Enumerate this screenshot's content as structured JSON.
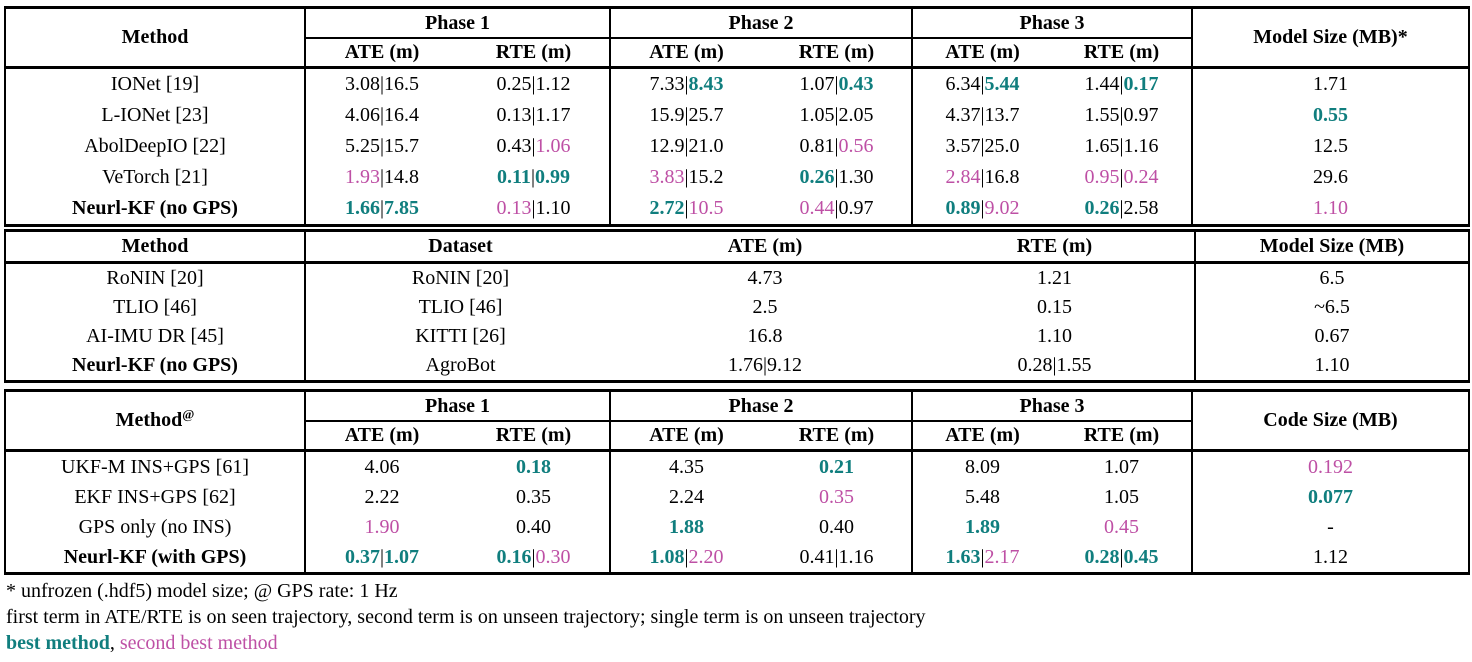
{
  "colors": {
    "best": "#107e7e",
    "second": "#be50a5",
    "text": "#000000",
    "background": "#ffffff"
  },
  "style_legend": {
    "b": "best method (bold teal)",
    "s": "second best method (magenta)",
    "k": "normal black"
  },
  "tables": [
    {
      "id": "imu-methods-phases",
      "kind": "phase",
      "method_header": "Method",
      "method_sup": "",
      "groups": [
        {
          "label": "Phase 1"
        },
        {
          "label": "Phase 2"
        },
        {
          "label": "Phase 3"
        }
      ],
      "sub_headers": [
        "ATE (m)",
        "RTE (m)"
      ],
      "last_header": "Model Size (MB)*",
      "rows": [
        {
          "method": "IONet [19]",
          "bold": false,
          "cells": [
            [
              [
                "3.08",
                "k"
              ],
              [
                "16.5",
                "k"
              ]
            ],
            [
              [
                "0.25",
                "k"
              ],
              [
                "1.12",
                "k"
              ]
            ],
            [
              [
                "7.33",
                "k"
              ],
              [
                "8.43",
                "b"
              ]
            ],
            [
              [
                "1.07",
                "k"
              ],
              [
                "0.43",
                "b"
              ]
            ],
            [
              [
                "6.34",
                "k"
              ],
              [
                "5.44",
                "b"
              ]
            ],
            [
              [
                "1.44",
                "k"
              ],
              [
                "0.17",
                "b"
              ]
            ],
            [
              [
                "1.71",
                "k"
              ]
            ]
          ]
        },
        {
          "method": "L-IONet [23]",
          "bold": false,
          "cells": [
            [
              [
                "4.06",
                "k"
              ],
              [
                "16.4",
                "k"
              ]
            ],
            [
              [
                "0.13",
                "k"
              ],
              [
                "1.17",
                "k"
              ]
            ],
            [
              [
                "15.9",
                "k"
              ],
              [
                "25.7",
                "k"
              ]
            ],
            [
              [
                "1.05",
                "k"
              ],
              [
                "2.05",
                "k"
              ]
            ],
            [
              [
                "4.37",
                "k"
              ],
              [
                "13.7",
                "k"
              ]
            ],
            [
              [
                "1.55",
                "k"
              ],
              [
                "0.97",
                "k"
              ]
            ],
            [
              [
                "0.55",
                "b"
              ]
            ]
          ]
        },
        {
          "method": "AbolDeepIO [22]",
          "bold": false,
          "cells": [
            [
              [
                "5.25",
                "k"
              ],
              [
                "15.7",
                "k"
              ]
            ],
            [
              [
                "0.43",
                "k"
              ],
              [
                "1.06",
                "s"
              ]
            ],
            [
              [
                "12.9",
                "k"
              ],
              [
                "21.0",
                "k"
              ]
            ],
            [
              [
                "0.81",
                "k"
              ],
              [
                "0.56",
                "s"
              ]
            ],
            [
              [
                "3.57",
                "k"
              ],
              [
                "25.0",
                "k"
              ]
            ],
            [
              [
                "1.65",
                "k"
              ],
              [
                "1.16",
                "k"
              ]
            ],
            [
              [
                "12.5",
                "k"
              ]
            ]
          ]
        },
        {
          "method": "VeTorch [21]",
          "bold": false,
          "cells": [
            [
              [
                "1.93",
                "s"
              ],
              [
                "14.8",
                "k"
              ]
            ],
            [
              [
                "0.11",
                "b"
              ],
              [
                "0.99",
                "b"
              ]
            ],
            [
              [
                "3.83",
                "s"
              ],
              [
                "15.2",
                "k"
              ]
            ],
            [
              [
                "0.26",
                "b"
              ],
              [
                "1.30",
                "k"
              ]
            ],
            [
              [
                "2.84",
                "s"
              ],
              [
                "16.8",
                "k"
              ]
            ],
            [
              [
                "0.95",
                "s"
              ],
              [
                "0.24",
                "s"
              ]
            ],
            [
              [
                "29.6",
                "k"
              ]
            ]
          ]
        },
        {
          "method": "Neurl-KF (no GPS)",
          "bold": true,
          "cells": [
            [
              [
                "1.66",
                "b"
              ],
              [
                "7.85",
                "b"
              ]
            ],
            [
              [
                "0.13",
                "s"
              ],
              [
                "1.10",
                "k"
              ]
            ],
            [
              [
                "2.72",
                "b"
              ],
              [
                "10.5",
                "s"
              ]
            ],
            [
              [
                "0.44",
                "s"
              ],
              [
                "0.97",
                "k"
              ]
            ],
            [
              [
                "0.89",
                "b"
              ],
              [
                "9.02",
                "s"
              ]
            ],
            [
              [
                "0.26",
                "b"
              ],
              [
                "2.58",
                "k"
              ]
            ],
            [
              [
                "1.10",
                "s"
              ]
            ]
          ]
        }
      ]
    },
    {
      "id": "cross-dataset-comparison",
      "kind": "simple",
      "headers": [
        "Method",
        "Dataset",
        "ATE (m)",
        "RTE (m)",
        "Model Size (MB)"
      ],
      "rows": [
        {
          "method": "RoNIN [20]",
          "bold": false,
          "cells": [
            [
              [
                "RoNIN [20]",
                "k"
              ]
            ],
            [
              [
                "4.73",
                "k"
              ]
            ],
            [
              [
                "1.21",
                "k"
              ]
            ],
            [
              [
                "6.5",
                "k"
              ]
            ]
          ]
        },
        {
          "method": "TLIO [46]",
          "bold": false,
          "cells": [
            [
              [
                "TLIO [46]",
                "k"
              ]
            ],
            [
              [
                "2.5",
                "k"
              ]
            ],
            [
              [
                "0.15",
                "k"
              ]
            ],
            [
              [
                "~6.5",
                "k"
              ]
            ]
          ]
        },
        {
          "method": "AI-IMU DR [45]",
          "bold": false,
          "cells": [
            [
              [
                "KITTI [26]",
                "k"
              ]
            ],
            [
              [
                "16.8",
                "k"
              ]
            ],
            [
              [
                "1.10",
                "k"
              ]
            ],
            [
              [
                "0.67",
                "k"
              ]
            ]
          ]
        },
        {
          "method": "Neurl-KF (no GPS)",
          "bold": true,
          "cells": [
            [
              [
                "AgroBot",
                "k"
              ]
            ],
            [
              [
                "1.76",
                "k"
              ],
              [
                "9.12",
                "k"
              ]
            ],
            [
              [
                "0.28",
                "k"
              ],
              [
                "1.55",
                "k"
              ]
            ],
            [
              [
                "1.10",
                "k"
              ]
            ]
          ]
        }
      ]
    },
    {
      "id": "gps-methods-phases",
      "kind": "phase",
      "method_header": "Method",
      "method_sup": "@",
      "groups": [
        {
          "label": "Phase 1"
        },
        {
          "label": "Phase 2"
        },
        {
          "label": "Phase 3"
        }
      ],
      "sub_headers": [
        "ATE (m)",
        "RTE (m)"
      ],
      "last_header": "Code Size (MB)",
      "rows": [
        {
          "method": "UKF-M INS+GPS [61]",
          "bold": false,
          "cells": [
            [
              [
                "4.06",
                "k"
              ]
            ],
            [
              [
                "0.18",
                "b"
              ]
            ],
            [
              [
                "4.35",
                "k"
              ]
            ],
            [
              [
                "0.21",
                "b"
              ]
            ],
            [
              [
                "8.09",
                "k"
              ]
            ],
            [
              [
                "1.07",
                "k"
              ]
            ],
            [
              [
                "0.192",
                "s"
              ]
            ]
          ]
        },
        {
          "method": "EKF INS+GPS [62]",
          "bold": false,
          "cells": [
            [
              [
                "2.22",
                "k"
              ]
            ],
            [
              [
                "0.35",
                "k"
              ]
            ],
            [
              [
                "2.24",
                "k"
              ]
            ],
            [
              [
                "0.35",
                "s"
              ]
            ],
            [
              [
                "5.48",
                "k"
              ]
            ],
            [
              [
                "1.05",
                "k"
              ]
            ],
            [
              [
                "0.077",
                "b"
              ]
            ]
          ]
        },
        {
          "method": "GPS only (no INS)",
          "bold": false,
          "cells": [
            [
              [
                "1.90",
                "s"
              ]
            ],
            [
              [
                "0.40",
                "k"
              ]
            ],
            [
              [
                "1.88",
                "b"
              ]
            ],
            [
              [
                "0.40",
                "k"
              ]
            ],
            [
              [
                "1.89",
                "b"
              ]
            ],
            [
              [
                "0.45",
                "s"
              ]
            ],
            [
              [
                "-",
                "k"
              ]
            ]
          ]
        },
        {
          "method": "Neurl-KF (with GPS)",
          "bold": true,
          "cells": [
            [
              [
                "0.37",
                "b"
              ],
              [
                "1.07",
                "b"
              ]
            ],
            [
              [
                "0.16",
                "b"
              ],
              [
                "0.30",
                "s"
              ]
            ],
            [
              [
                "1.08",
                "b"
              ],
              [
                "2.20",
                "s"
              ]
            ],
            [
              [
                "0.41",
                "k"
              ],
              [
                "1.16",
                "k"
              ]
            ],
            [
              [
                "1.63",
                "b"
              ],
              [
                "2.17",
                "s"
              ]
            ],
            [
              [
                "0.28",
                "b"
              ],
              [
                "0.45",
                "b"
              ]
            ],
            [
              [
                "1.12",
                "k"
              ]
            ]
          ]
        }
      ]
    }
  ],
  "footnotes": {
    "line1": "* unfrozen (.hdf5) model size; @ GPS rate: 1 Hz",
    "line2": "first term in ATE/RTE is on seen trajectory, second term is on unseen trajectory; single term is on unseen trajectory",
    "line3_segments": [
      [
        "best method",
        "b"
      ],
      [
        ", ",
        "k"
      ],
      [
        "second best method",
        "s"
      ]
    ]
  }
}
